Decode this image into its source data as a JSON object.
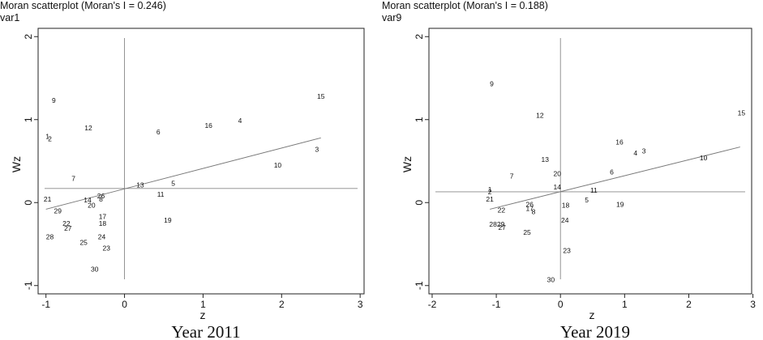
{
  "chart_data": [
    {
      "type": "scatter",
      "title": "Moran scatterplot (Moran's I = 0.246)",
      "subtitle": "var1",
      "xlabel": "z",
      "ylabel": "Wz",
      "caption": "Year 2011",
      "xlim": [
        -1.1,
        3.05
      ],
      "ylim": [
        -1.1,
        2.1
      ],
      "xticks": [
        "-1",
        "0",
        "1",
        "2",
        "3"
      ],
      "xtick_values": [
        -1,
        0,
        1,
        2,
        3
      ],
      "yticks": [
        "-1",
        "0",
        "1",
        "2"
      ],
      "ytick_values": [
        -1,
        0,
        1,
        2
      ],
      "grid": false,
      "ref_lines": {
        "x": 0,
        "y": 0.17
      },
      "fit_line": {
        "x": [
          -1.0,
          2.5
        ],
        "y": [
          -0.08,
          0.78
        ]
      },
      "points": [
        {
          "label": "9",
          "x": -0.9,
          "y": 1.23
        },
        {
          "label": "12",
          "x": -0.46,
          "y": 0.9
        },
        {
          "label": "1",
          "x": -0.98,
          "y": 0.8
        },
        {
          "label": "2",
          "x": -0.95,
          "y": 0.77
        },
        {
          "label": "7",
          "x": -0.65,
          "y": 0.29
        },
        {
          "label": "21",
          "x": -0.98,
          "y": 0.04
        },
        {
          "label": "29",
          "x": -0.85,
          "y": -0.1
        },
        {
          "label": "14",
          "x": -0.47,
          "y": 0.03
        },
        {
          "label": "26",
          "x": -0.3,
          "y": 0.08
        },
        {
          "label": "8",
          "x": -0.3,
          "y": 0.04
        },
        {
          "label": "20",
          "x": -0.42,
          "y": -0.03
        },
        {
          "label": "17",
          "x": -0.28,
          "y": -0.17
        },
        {
          "label": "18",
          "x": -0.28,
          "y": -0.25
        },
        {
          "label": "22",
          "x": -0.74,
          "y": -0.25
        },
        {
          "label": "27",
          "x": -0.72,
          "y": -0.31
        },
        {
          "label": "28",
          "x": -0.95,
          "y": -0.41
        },
        {
          "label": "24",
          "x": -0.29,
          "y": -0.41
        },
        {
          "label": "25",
          "x": -0.52,
          "y": -0.48
        },
        {
          "label": "23",
          "x": -0.23,
          "y": -0.55
        },
        {
          "label": "30",
          "x": -0.38,
          "y": -0.8
        },
        {
          "label": "6",
          "x": 0.43,
          "y": 0.85
        },
        {
          "label": "16",
          "x": 1.07,
          "y": 0.93
        },
        {
          "label": "4",
          "x": 1.47,
          "y": 0.99
        },
        {
          "label": "15",
          "x": 2.5,
          "y": 1.28
        },
        {
          "label": "3",
          "x": 2.45,
          "y": 0.64
        },
        {
          "label": "10",
          "x": 1.95,
          "y": 0.45
        },
        {
          "label": "13",
          "x": 0.2,
          "y": 0.21
        },
        {
          "label": "5",
          "x": 0.62,
          "y": 0.23
        },
        {
          "label": "11",
          "x": 0.46,
          "y": 0.1
        },
        {
          "label": "19",
          "x": 0.55,
          "y": -0.21
        }
      ]
    },
    {
      "type": "scatter",
      "title": "Moran scatterplot (Moran's I = 0.188)",
      "subtitle": "var9",
      "xlabel": "z",
      "ylabel": "Wz",
      "caption": "Year 2019",
      "xlim": [
        -2.05,
        2.98
      ],
      "ylim": [
        -1.1,
        2.1
      ],
      "xticks": [
        "-2",
        "-1",
        "0",
        "1",
        "2",
        "3"
      ],
      "xtick_values": [
        -2,
        -1,
        0,
        1,
        2,
        3
      ],
      "yticks": [
        "-1",
        "0",
        "1",
        "2"
      ],
      "ytick_values": [
        -1,
        0,
        1,
        2
      ],
      "grid": false,
      "ref_lines": {
        "x": 0,
        "y": 0.13
      },
      "fit_line": {
        "x": [
          -1.1,
          2.8
        ],
        "y": [
          -0.08,
          0.67
        ]
      },
      "points": [
        {
          "label": "9",
          "x": -1.07,
          "y": 1.43
        },
        {
          "label": "12",
          "x": -0.32,
          "y": 1.05
        },
        {
          "label": "13",
          "x": -0.24,
          "y": 0.52
        },
        {
          "label": "7",
          "x": -0.76,
          "y": 0.32
        },
        {
          "label": "20",
          "x": -0.05,
          "y": 0.35
        },
        {
          "label": "14",
          "x": -0.05,
          "y": 0.19
        },
        {
          "label": "1",
          "x": -1.1,
          "y": 0.16
        },
        {
          "label": "2",
          "x": -1.1,
          "y": 0.13
        },
        {
          "label": "21",
          "x": -1.1,
          "y": 0.04
        },
        {
          "label": "22",
          "x": -0.92,
          "y": -0.09
        },
        {
          "label": "26",
          "x": -0.48,
          "y": -0.02
        },
        {
          "label": "17",
          "x": -0.48,
          "y": -0.07
        },
        {
          "label": "8",
          "x": -0.42,
          "y": -0.11
        },
        {
          "label": "28",
          "x": -1.05,
          "y": -0.26
        },
        {
          "label": "29",
          "x": -0.93,
          "y": -0.26
        },
        {
          "label": "27",
          "x": -0.91,
          "y": -0.3
        },
        {
          "label": "25",
          "x": -0.52,
          "y": -0.36
        },
        {
          "label": "18",
          "x": 0.08,
          "y": -0.03
        },
        {
          "label": "24",
          "x": 0.07,
          "y": -0.21
        },
        {
          "label": "23",
          "x": 0.1,
          "y": -0.58
        },
        {
          "label": "30",
          "x": -0.15,
          "y": -0.93
        },
        {
          "label": "16",
          "x": 0.92,
          "y": 0.73
        },
        {
          "label": "4",
          "x": 1.17,
          "y": 0.6
        },
        {
          "label": "3",
          "x": 1.3,
          "y": 0.62
        },
        {
          "label": "15",
          "x": 2.82,
          "y": 1.08
        },
        {
          "label": "10",
          "x": 2.23,
          "y": 0.54
        },
        {
          "label": "6",
          "x": 0.8,
          "y": 0.37
        },
        {
          "label": "11",
          "x": 0.52,
          "y": 0.15
        },
        {
          "label": "5",
          "x": 0.41,
          "y": 0.03
        },
        {
          "label": "19",
          "x": 0.93,
          "y": -0.02
        }
      ]
    }
  ]
}
